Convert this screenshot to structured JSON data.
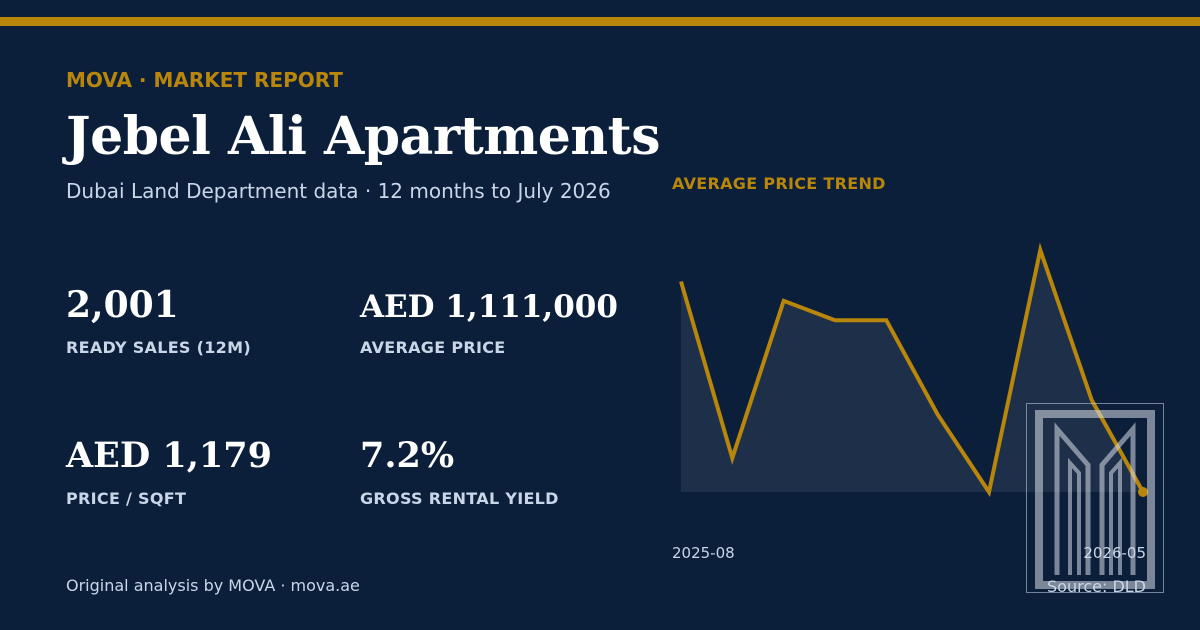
{
  "header": {
    "eyebrow": "MOVA · MARKET REPORT",
    "title": "Jebel Ali Apartments",
    "subtitle": "Dubai Land Department data · 12 months to July 2026"
  },
  "stats": [
    {
      "value": "2,001",
      "label": "READY SALES (12M)"
    },
    {
      "value": "AED 1,111,000",
      "label": "AVERAGE PRICE"
    },
    {
      "value": "AED 1,179",
      "label": "PRICE / SQFT"
    },
    {
      "value": "7.2%",
      "label": "GROSS RENTAL YIELD"
    }
  ],
  "footer": {
    "credit": "Original analysis by MOVA · mova.ae",
    "source": "Source: DLD"
  },
  "colors": {
    "background": "#0b1f3a",
    "accent": "#b8860b",
    "text": "#ffffff",
    "muted": "#c9d6e8"
  },
  "logo": {
    "icon": "mova-m-logo-icon"
  },
  "chart_data": {
    "type": "area",
    "title": "AVERAGE PRICE TREND",
    "x_first_label": "2025-08",
    "x_last_label": "2026-05",
    "values": [
      0.87,
      0.14,
      0.79,
      0.71,
      0.71,
      0.32,
      0.0,
      1.0,
      0.38,
      0.0
    ],
    "y_axis_shown": false,
    "grid": false,
    "legend": "none",
    "line_color": "#b8860b"
  }
}
